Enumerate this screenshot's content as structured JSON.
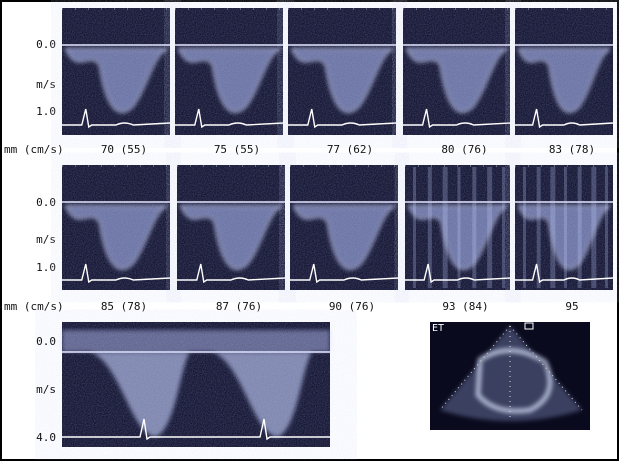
{
  "rows": [
    {
      "axis_labels": [
        "0.0",
        "m/s",
        "1.0"
      ],
      "caption_prefix": "mm (cm/s)",
      "panels": [
        "70 (55)",
        "75 (55)",
        "77 (62)",
        "80 (76)",
        "83 (78)"
      ]
    },
    {
      "axis_labels": [
        "0.0",
        "m/s",
        "1.0"
      ],
      "caption_prefix": "mm (cm/s)",
      "panels": [
        "85 (78)",
        "87 (76)",
        "90 (76)",
        "93 (84)",
        "95"
      ]
    }
  ],
  "large_panel": {
    "axis_labels": [
      "0.0",
      "m/s",
      "4.0"
    ]
  },
  "echo_label": "ET"
}
